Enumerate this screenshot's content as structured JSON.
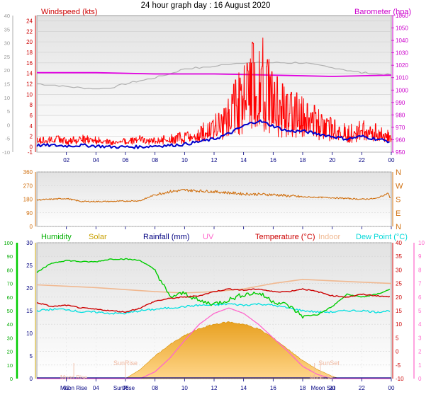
{
  "title": "24 hour graph day : 16 August 2020",
  "hours": [
    "02",
    "04",
    "06",
    "08",
    "10",
    "12",
    "14",
    "16",
    "18",
    "20",
    "22",
    "00"
  ],
  "colors": {
    "windspeed": "#ff0000",
    "windgust": "#ff0000",
    "windavg": "#0000cc",
    "barometer": "#e000e0",
    "winddir": "#d07010",
    "humidity": "#00cc00",
    "solar": "#e6a000",
    "rainfall": "#000080",
    "uv": "#ff66cc",
    "temperature": "#cc0000",
    "indoor": "#f0b890",
    "dewpoint": "#00e0e0",
    "cloud": "#b0b0b0"
  },
  "chart_data": [
    {
      "type": "line",
      "name": "wind-barometer",
      "left_label": "Windspeed (kts)",
      "right_label": "Barometer (hpa)",
      "left_ticks": [
        "-1",
        "0",
        "2",
        "4",
        "6",
        "8",
        "10",
        "12",
        "14",
        "16",
        "18",
        "20",
        "22",
        "24"
      ],
      "right_ticks": [
        "950",
        "960",
        "970",
        "980",
        "990",
        "1000",
        "1010",
        "1020",
        "1030",
        "1040",
        "1050",
        "1060"
      ],
      "outer_left_ticks": [
        "-10",
        "-5",
        "0",
        "5",
        "10",
        "15",
        "20",
        "25",
        "30",
        "35",
        "40"
      ],
      "ylim_left": [
        -1,
        25
      ],
      "ylim_right": [
        950,
        1060
      ],
      "series": {
        "windspeed_max": [
          [
            0,
            2
          ],
          [
            1,
            2.5
          ],
          [
            2,
            2
          ],
          [
            3,
            2.5
          ],
          [
            4,
            2.2
          ],
          [
            5,
            1.5
          ],
          [
            6,
            2
          ],
          [
            7,
            2.3
          ],
          [
            8,
            2
          ],
          [
            9,
            2.5
          ],
          [
            10,
            3
          ],
          [
            11,
            4
          ],
          [
            12,
            5
          ],
          [
            13,
            8
          ],
          [
            14,
            11
          ],
          [
            14.5,
            13
          ],
          [
            15,
            17
          ],
          [
            15.5,
            13
          ],
          [
            16,
            10
          ],
          [
            17,
            8
          ],
          [
            18,
            7
          ],
          [
            19,
            6
          ],
          [
            20,
            5
          ],
          [
            21,
            4
          ],
          [
            22,
            4.5
          ],
          [
            23,
            4
          ],
          [
            24,
            3
          ]
        ],
        "windspeed_avg": [
          [
            0,
            0.3
          ],
          [
            1,
            0.3
          ],
          [
            2,
            0.2
          ],
          [
            3,
            0.3
          ],
          [
            4,
            0.2
          ],
          [
            5,
            0
          ],
          [
            6,
            0
          ],
          [
            7,
            0
          ],
          [
            8,
            0.2
          ],
          [
            9,
            0.3
          ],
          [
            10,
            0.5
          ],
          [
            11,
            1
          ],
          [
            12,
            1.5
          ],
          [
            13,
            2.5
          ],
          [
            14,
            4
          ],
          [
            14.5,
            4.5
          ],
          [
            15,
            5
          ],
          [
            16,
            4
          ],
          [
            17,
            3
          ],
          [
            18,
            3
          ],
          [
            19,
            2.5
          ],
          [
            20,
            2
          ],
          [
            21,
            1.5
          ],
          [
            22,
            2
          ],
          [
            23,
            1.5
          ],
          [
            24,
            1
          ]
        ],
        "barometer": [
          [
            0,
            1014
          ],
          [
            4,
            1014
          ],
          [
            8,
            1013
          ],
          [
            12,
            1013
          ],
          [
            16,
            1012
          ],
          [
            20,
            1011
          ],
          [
            24,
            1012
          ]
        ],
        "cloud": [
          [
            0,
            1005
          ],
          [
            2,
            1003
          ],
          [
            4,
            1001
          ],
          [
            5,
            1002
          ],
          [
            6,
            1005
          ],
          [
            8,
            1010
          ],
          [
            9,
            1013
          ],
          [
            10,
            1017
          ],
          [
            12,
            1019
          ],
          [
            13,
            1021
          ],
          [
            14,
            1022
          ],
          [
            16,
            1022
          ],
          [
            18,
            1022
          ],
          [
            20,
            1018
          ],
          [
            22,
            1014
          ],
          [
            24,
            1012
          ]
        ]
      }
    },
    {
      "type": "line",
      "name": "wind-direction",
      "left_ticks": [
        "0",
        "90",
        "180",
        "270",
        "360"
      ],
      "right_ticks": [
        "N",
        "E",
        "S",
        "W",
        "N"
      ],
      "ylim": [
        0,
        360
      ],
      "series": {
        "winddir": [
          [
            0,
            175
          ],
          [
            2,
            185
          ],
          [
            3,
            165
          ],
          [
            5,
            165
          ],
          [
            7,
            170
          ],
          [
            8,
            210
          ],
          [
            9,
            230
          ],
          [
            10,
            240
          ],
          [
            12,
            230
          ],
          [
            14,
            215
          ],
          [
            16,
            210
          ],
          [
            18,
            195
          ],
          [
            20,
            190
          ],
          [
            22,
            180
          ],
          [
            23,
            185
          ],
          [
            23.8,
            220
          ],
          [
            23.9,
            190
          ],
          [
            24,
            185
          ]
        ]
      }
    },
    {
      "type": "line",
      "name": "humidity-solar-temperature",
      "legend": [
        "Humidity",
        "Solar",
        "Rainfall (mm)",
        "UV",
        "Temperature (°C)",
        "Indoor",
        "Dew Point (°C)"
      ],
      "hum_ticks": [
        "0",
        "10",
        "20",
        "30",
        "40",
        "50",
        "60",
        "70",
        "80",
        "90",
        "100"
      ],
      "sol_ticks": [
        "0",
        "5",
        "10",
        "15",
        "20",
        "25",
        "30"
      ],
      "temp_ticks": [
        "-10",
        "-5",
        "0",
        "5",
        "10",
        "15",
        "20",
        "25",
        "30",
        "35",
        "40"
      ],
      "uv_ticks": [
        "0",
        "1",
        "2",
        "3",
        "4",
        "5",
        "6",
        "7",
        "8",
        "9",
        "10"
      ],
      "markers": {
        "moonrise": "Moon Rise",
        "sunrise": "SunRise",
        "sunset": "SunSet",
        "moonset": "Moon Set",
        "moonrise_h": 2.5,
        "sunrise_h": 6.0,
        "sunset_h": 19.2,
        "moonset_h": 18.8
      },
      "ylim_hum": [
        0,
        100
      ],
      "ylim_temp": [
        -10,
        40
      ],
      "ylim_uv": [
        0,
        10
      ],
      "series": {
        "humidity": [
          [
            0,
            78
          ],
          [
            1,
            85
          ],
          [
            2,
            87
          ],
          [
            3,
            86
          ],
          [
            4,
            86
          ],
          [
            5,
            88
          ],
          [
            6,
            88
          ],
          [
            7,
            87
          ],
          [
            8,
            80
          ],
          [
            9,
            60
          ],
          [
            10,
            63
          ],
          [
            11,
            57
          ],
          [
            12,
            55
          ],
          [
            13,
            58
          ],
          [
            14,
            62
          ],
          [
            15,
            63
          ],
          [
            16,
            57
          ],
          [
            17,
            54
          ],
          [
            18,
            46
          ],
          [
            19,
            47
          ],
          [
            20,
            53
          ],
          [
            21,
            62
          ],
          [
            22,
            60
          ],
          [
            23,
            62
          ],
          [
            24,
            66
          ]
        ],
        "solar": [
          [
            6,
            0
          ],
          [
            7,
            2
          ],
          [
            8,
            5
          ],
          [
            9,
            7.5
          ],
          [
            10,
            9.5
          ],
          [
            11,
            11
          ],
          [
            12,
            12
          ],
          [
            13,
            12.5
          ],
          [
            14,
            12
          ],
          [
            15,
            11
          ],
          [
            16,
            9
          ],
          [
            17,
            6.5
          ],
          [
            18,
            4
          ],
          [
            19,
            2
          ],
          [
            20,
            0.5
          ],
          [
            20.5,
            0
          ]
        ],
        "uv": [
          [
            0,
            0
          ],
          [
            7,
            0
          ],
          [
            8,
            0.5
          ],
          [
            9,
            1.5
          ],
          [
            10,
            2.8
          ],
          [
            11,
            4
          ],
          [
            12,
            4.8
          ],
          [
            13,
            5.2
          ],
          [
            14,
            4.8
          ],
          [
            15,
            4
          ],
          [
            16,
            3
          ],
          [
            17,
            2
          ],
          [
            18,
            0.9
          ],
          [
            19,
            0.3
          ],
          [
            20,
            0
          ],
          [
            24,
            0
          ]
        ],
        "temperature": [
          [
            0,
            18
          ],
          [
            1,
            16.5
          ],
          [
            2,
            17
          ],
          [
            3,
            16
          ],
          [
            4,
            15.5
          ],
          [
            5,
            15
          ],
          [
            6,
            14.5
          ],
          [
            7,
            16
          ],
          [
            8,
            18.5
          ],
          [
            9,
            19.5
          ],
          [
            10,
            20
          ],
          [
            11,
            20.5
          ],
          [
            12,
            22
          ],
          [
            13,
            23
          ],
          [
            14,
            22.5
          ],
          [
            15,
            23
          ],
          [
            16,
            22
          ],
          [
            17,
            22
          ],
          [
            18,
            23
          ],
          [
            19,
            22
          ],
          [
            20,
            20.5
          ],
          [
            21,
            20
          ],
          [
            22,
            21
          ],
          [
            23,
            20.5
          ],
          [
            24,
            20
          ]
        ],
        "indoor": [
          [
            0,
            24.5
          ],
          [
            4,
            23.5
          ],
          [
            8,
            22
          ],
          [
            10,
            21.5
          ],
          [
            12,
            22
          ],
          [
            14,
            23
          ],
          [
            16,
            25
          ],
          [
            18,
            26.5
          ],
          [
            20,
            26
          ],
          [
            22,
            25.5
          ],
          [
            24,
            25
          ]
        ],
        "dewpoint": [
          [
            0,
            15
          ],
          [
            1,
            15.5
          ],
          [
            2,
            15.5
          ],
          [
            3,
            14.5
          ],
          [
            4,
            14.5
          ],
          [
            5,
            14
          ],
          [
            6,
            14
          ],
          [
            7,
            15
          ],
          [
            8,
            15.5
          ],
          [
            9,
            16
          ],
          [
            10,
            16.5
          ],
          [
            11,
            17
          ],
          [
            12,
            17
          ],
          [
            13,
            17.5
          ],
          [
            14,
            17
          ],
          [
            15,
            17.5
          ],
          [
            16,
            17
          ],
          [
            17,
            16
          ],
          [
            18,
            15
          ],
          [
            19,
            14.5
          ],
          [
            20,
            14.5
          ],
          [
            21,
            15
          ],
          [
            22,
            15
          ],
          [
            23,
            14.5
          ],
          [
            24,
            15
          ]
        ]
      }
    }
  ]
}
